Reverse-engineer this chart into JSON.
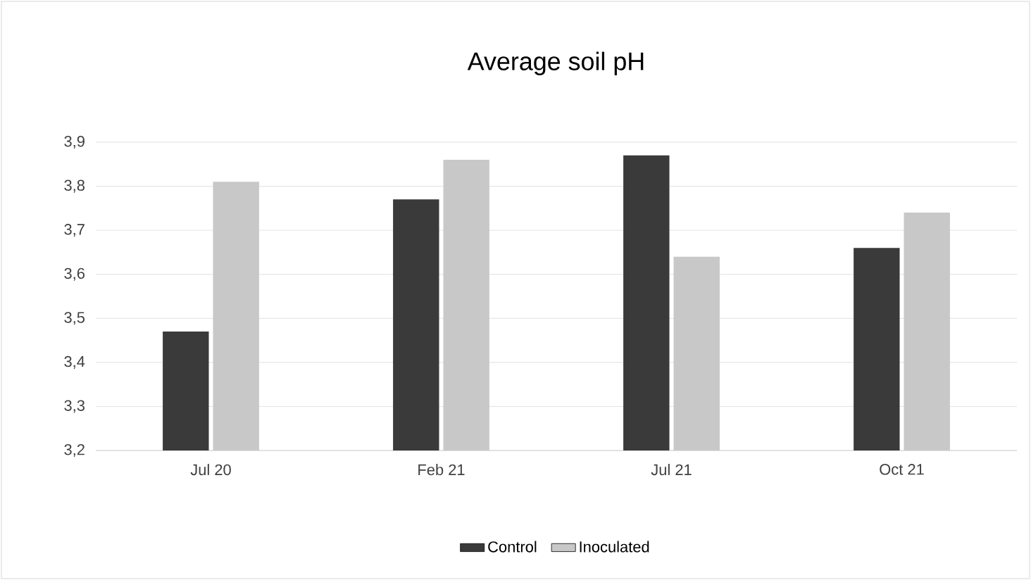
{
  "chart_data": {
    "type": "bar",
    "title": "Average soil pH",
    "categories": [
      "Jul 20",
      "Feb 21",
      "Jul 21",
      "Oct 21"
    ],
    "series": [
      {
        "name": "Control",
        "color": "#3a3a3a",
        "values": [
          3.47,
          3.77,
          3.87,
          3.66
        ]
      },
      {
        "name": "Inoculated",
        "color": "#c8c8c8",
        "values": [
          3.81,
          3.86,
          3.64,
          3.74
        ]
      }
    ],
    "ylim": [
      3.2,
      3.9
    ],
    "yticks": [
      {
        "value": 3.2,
        "label": "3,2"
      },
      {
        "value": 3.3,
        "label": "3,3"
      },
      {
        "value": 3.4,
        "label": "3,4"
      },
      {
        "value": 3.5,
        "label": "3,5"
      },
      {
        "value": 3.6,
        "label": "3,6"
      },
      {
        "value": 3.7,
        "label": "3,7"
      },
      {
        "value": 3.8,
        "label": "3,8"
      },
      {
        "value": 3.9,
        "label": "3,9"
      }
    ],
    "grid": "y",
    "legend": "bottom"
  }
}
